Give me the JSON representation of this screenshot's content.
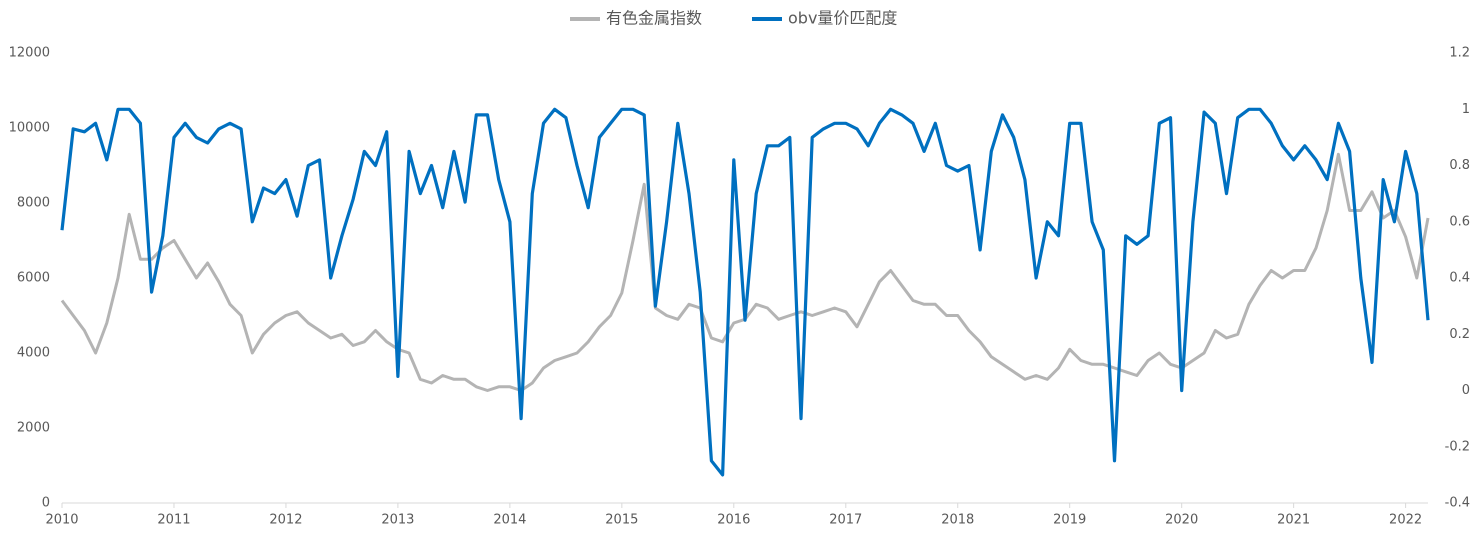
{
  "chart_data": {
    "type": "line",
    "x": [
      2010.0,
      2010.1,
      2010.2,
      2010.3,
      2010.4,
      2010.5,
      2010.6,
      2010.7,
      2010.8,
      2010.9,
      2011.0,
      2011.1,
      2011.2,
      2011.3,
      2011.4,
      2011.5,
      2011.6,
      2011.7,
      2011.8,
      2011.9,
      2012.0,
      2012.1,
      2012.2,
      2012.3,
      2012.4,
      2012.5,
      2012.6,
      2012.7,
      2012.8,
      2012.9,
      2013.0,
      2013.1,
      2013.2,
      2013.3,
      2013.4,
      2013.5,
      2013.6,
      2013.7,
      2013.8,
      2013.9,
      2014.0,
      2014.1,
      2014.2,
      2014.3,
      2014.4,
      2014.5,
      2014.6,
      2014.7,
      2014.8,
      2014.9,
      2015.0,
      2015.1,
      2015.2,
      2015.3,
      2015.4,
      2015.5,
      2015.6,
      2015.7,
      2015.8,
      2015.9,
      2016.0,
      2016.1,
      2016.2,
      2016.3,
      2016.4,
      2016.5,
      2016.6,
      2016.7,
      2016.8,
      2016.9,
      2017.0,
      2017.1,
      2017.2,
      2017.3,
      2017.4,
      2017.5,
      2017.6,
      2017.7,
      2017.8,
      2017.9,
      2018.0,
      2018.1,
      2018.2,
      2018.3,
      2018.4,
      2018.5,
      2018.6,
      2018.7,
      2018.8,
      2018.9,
      2019.0,
      2019.1,
      2019.2,
      2019.3,
      2019.4,
      2019.5,
      2019.6,
      2019.7,
      2019.8,
      2019.9,
      2020.0,
      2020.1,
      2020.2,
      2020.3,
      2020.4,
      2020.5,
      2020.6,
      2020.7,
      2020.8,
      2020.9,
      2021.0,
      2021.1,
      2021.2,
      2021.3,
      2021.4,
      2021.5,
      2021.6,
      2021.7,
      2021.8,
      2021.9,
      2022.0,
      2022.1,
      2022.2
    ],
    "series": [
      {
        "name": "有色金属指数",
        "color": "#b4b4b4",
        "axis": "y",
        "values": [
          5400,
          5000,
          4600,
          4000,
          4800,
          6000,
          7700,
          6500,
          6500,
          6800,
          7000,
          6500,
          6000,
          6400,
          5900,
          5300,
          5000,
          4000,
          4500,
          4800,
          5000,
          5100,
          4800,
          4600,
          4400,
          4500,
          4200,
          4300,
          4600,
          4300,
          4100,
          4000,
          3300,
          3200,
          3400,
          3300,
          3300,
          3100,
          3000,
          3100,
          3100,
          3000,
          3200,
          3600,
          3800,
          3900,
          4000,
          4300,
          4700,
          5000,
          5600,
          7000,
          8500,
          5200,
          5000,
          4900,
          5300,
          5200,
          4400,
          4300,
          4800,
          4900,
          5300,
          5200,
          4900,
          5000,
          5100,
          5000,
          5100,
          5200,
          5100,
          4700,
          5300,
          5900,
          6200,
          5800,
          5400,
          5300,
          5300,
          5000,
          5000,
          4600,
          4300,
          3900,
          3700,
          3500,
          3300,
          3400,
          3300,
          3600,
          4100,
          3800,
          3700,
          3700,
          3600,
          3500,
          3400,
          3800,
          4000,
          3700,
          3600,
          3800,
          4000,
          4600,
          4400,
          4500,
          5300,
          5800,
          6200,
          6000,
          6200,
          6200,
          6800,
          7800,
          9300,
          7800,
          7800,
          8300,
          7600,
          7800,
          7100,
          6000,
          7600
        ]
      },
      {
        "name": "obv量价匹配度",
        "color": "#0070c0",
        "axis": "y2",
        "values": [
          0.57,
          0.93,
          0.92,
          0.95,
          0.82,
          1.0,
          1.0,
          0.95,
          0.35,
          0.55,
          0.9,
          0.95,
          0.9,
          0.88,
          0.93,
          0.95,
          0.93,
          0.6,
          0.72,
          0.7,
          0.75,
          0.62,
          0.8,
          0.82,
          0.4,
          0.55,
          0.68,
          0.85,
          0.8,
          0.92,
          0.05,
          0.85,
          0.7,
          0.8,
          0.65,
          0.85,
          0.67,
          0.98,
          0.98,
          0.75,
          0.6,
          -0.1,
          0.7,
          0.95,
          1.0,
          0.97,
          0.8,
          0.65,
          0.9,
          0.95,
          1.0,
          1.0,
          0.98,
          0.3,
          0.6,
          0.95,
          0.7,
          0.35,
          -0.25,
          -0.3,
          0.82,
          0.25,
          0.7,
          0.87,
          0.87,
          0.9,
          -0.1,
          0.9,
          0.93,
          0.95,
          0.95,
          0.93,
          0.87,
          0.95,
          1.0,
          0.98,
          0.95,
          0.85,
          0.95,
          0.8,
          0.78,
          0.8,
          0.5,
          0.85,
          0.98,
          0.9,
          0.75,
          0.4,
          0.6,
          0.55,
          0.95,
          0.95,
          0.6,
          0.5,
          -0.25,
          0.55,
          0.52,
          0.55,
          0.95,
          0.97,
          0.0,
          0.6,
          0.99,
          0.95,
          0.7,
          0.97,
          1.0,
          1.0,
          0.95,
          0.87,
          0.82,
          0.87,
          0.82,
          0.75,
          0.95,
          0.85,
          0.4,
          0.1,
          0.75,
          0.6,
          0.85,
          0.7,
          0.25
        ]
      }
    ],
    "xlim": [
      2010,
      2022.2
    ],
    "xticks": [
      2010,
      2011,
      2012,
      2013,
      2014,
      2015,
      2016,
      2017,
      2018,
      2019,
      2020,
      2021,
      2022
    ],
    "ylim": [
      0,
      12000
    ],
    "yticks": [
      0,
      2000,
      4000,
      6000,
      8000,
      10000,
      12000
    ],
    "y2lim": [
      -0.4,
      1.2
    ],
    "y2ticks": [
      -0.4,
      -0.2,
      0,
      0.2,
      0.4,
      0.6,
      0.8,
      1,
      1.2
    ],
    "legend": "top",
    "grid": false
  }
}
